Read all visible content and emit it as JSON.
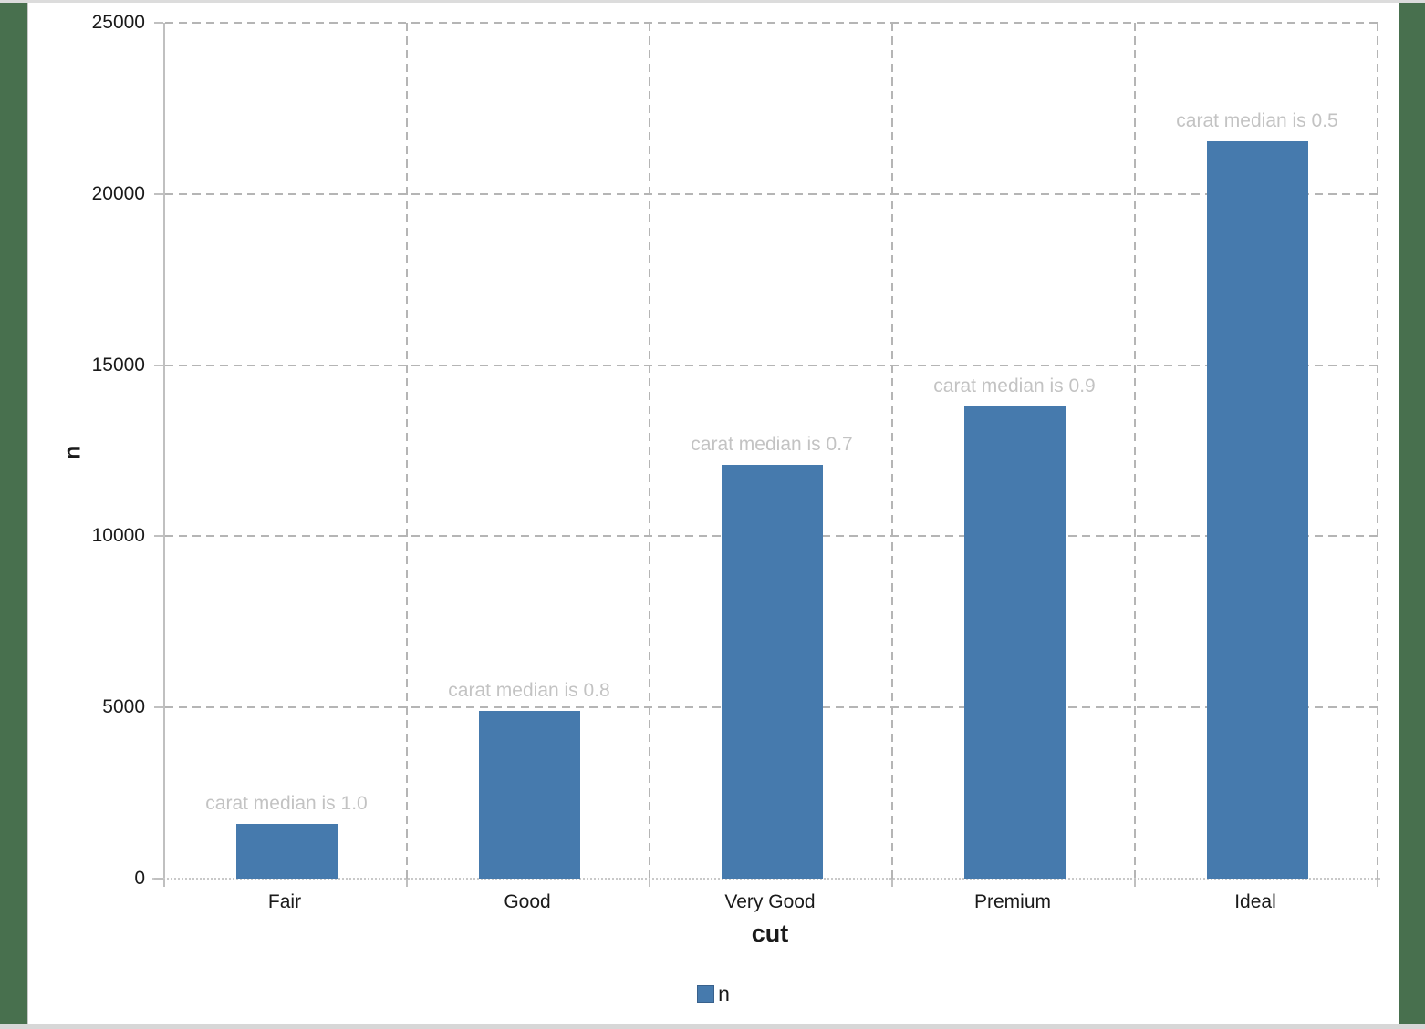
{
  "window": {
    "outer_background": "#48704e",
    "frame_strip_color": "#d9d9d9",
    "canvas_background": "#ffffff"
  },
  "chart_data": {
    "type": "bar",
    "title": "",
    "categories": [
      "Fair",
      "Good",
      "Very Good",
      "Premium",
      "Ideal"
    ],
    "series": [
      {
        "name": "n",
        "values": [
          1610,
          4906,
          12082,
          13791,
          21551
        ]
      }
    ],
    "bar_color": "#467aad",
    "annotations": [
      "carat median is 1.0",
      "carat median is 0.8",
      "carat median is 0.7",
      "carat median is 0.9",
      "carat median is 0.5"
    ],
    "annotation_color": "#c3c3c3",
    "xlabel": "cut",
    "ylabel": "n",
    "ylim": [
      0,
      25000
    ],
    "ytick_interval": 5000,
    "yticks": [
      0,
      5000,
      10000,
      15000,
      20000,
      25000
    ],
    "grid": "dashed",
    "gridline_color": "#b5b5b5",
    "axis_line_color": "#c0c0c0",
    "tick_label_color": "#1a1a1a",
    "legend": {
      "position": "bottom",
      "items": [
        {
          "label": "n",
          "color": "#467aad"
        }
      ]
    }
  }
}
